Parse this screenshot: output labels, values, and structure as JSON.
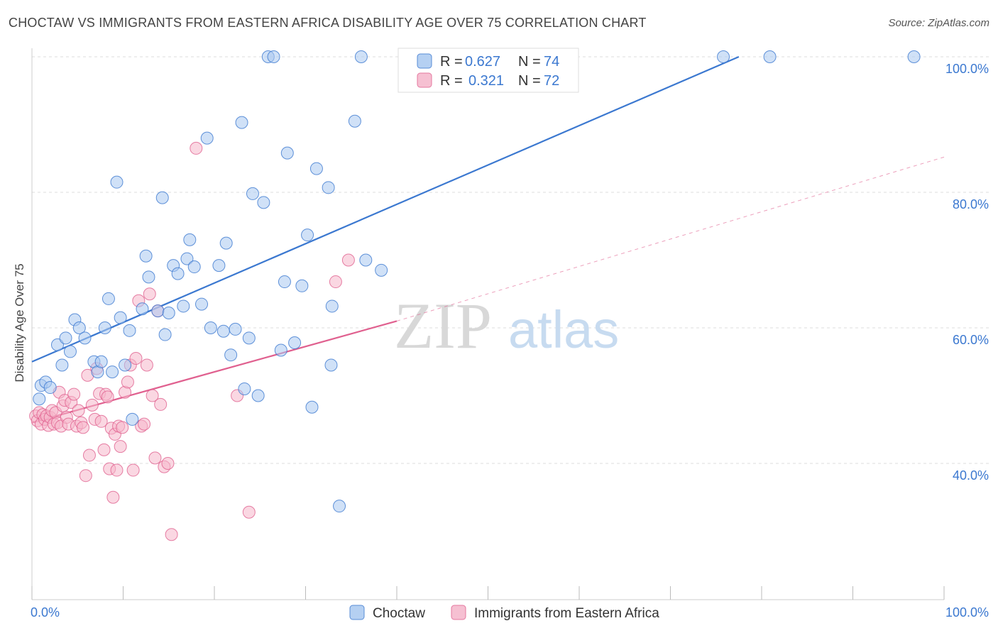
{
  "title": "CHOCTAW VS IMMIGRANTS FROM EASTERN AFRICA DISABILITY AGE OVER 75 CORRELATION CHART",
  "source": "Source: ZipAtlas.com",
  "watermark": {
    "part1": "ZIP",
    "part2": "atlas"
  },
  "colors": {
    "blue": "#3b78d0",
    "blue_fill": "#a9c8f0",
    "pink": "#e0608f",
    "pink_fill": "#f5b6cb",
    "grid": "#dddddd"
  },
  "chart_data": {
    "type": "scatter",
    "title": "CHOCTAW VS IMMIGRANTS FROM EASTERN AFRICA DISABILITY AGE OVER 75 CORRELATION CHART",
    "xlabel": "",
    "ylabel": "Disability Age Over 75",
    "xlim": [
      0,
      100
    ],
    "ylim": [
      20,
      102
    ],
    "x_tick_labels": [
      "0.0%",
      "100.0%"
    ],
    "y_ticks": [
      40,
      60,
      80,
      100
    ],
    "y_tick_labels": [
      "40.0%",
      "60.0%",
      "80.0%",
      "100.0%"
    ],
    "legend": [
      {
        "r_label": "R =",
        "r_value": "0.627",
        "n_label": "N =",
        "n_value": "74"
      },
      {
        "r_label": "R =",
        "r_value": "0.321",
        "n_label": "N =",
        "n_value": "72"
      }
    ],
    "series": [
      {
        "name": "Choctaw",
        "trend": {
          "x0": 0,
          "y0": 55.0,
          "x1": 77.5,
          "y1": 100.0,
          "dashed_to": null
        },
        "points": [
          [
            0.8,
            49.5
          ],
          [
            1.0,
            51.5
          ],
          [
            1.5,
            52.0
          ],
          [
            2.0,
            51.2
          ],
          [
            2.8,
            57.5
          ],
          [
            3.3,
            54.5
          ],
          [
            3.7,
            58.5
          ],
          [
            4.2,
            56.5
          ],
          [
            4.7,
            61.2
          ],
          [
            5.2,
            60.0
          ],
          [
            5.8,
            58.5
          ],
          [
            6.8,
            55.0
          ],
          [
            7.2,
            53.5
          ],
          [
            7.6,
            55.0
          ],
          [
            8.0,
            60.0
          ],
          [
            8.4,
            64.3
          ],
          [
            8.8,
            53.5
          ],
          [
            9.3,
            81.5
          ],
          [
            9.7,
            61.5
          ],
          [
            10.2,
            54.5
          ],
          [
            10.7,
            59.6
          ],
          [
            11.0,
            46.5
          ],
          [
            12.1,
            62.8
          ],
          [
            12.5,
            70.6
          ],
          [
            12.8,
            67.5
          ],
          [
            13.8,
            62.5
          ],
          [
            14.3,
            79.2
          ],
          [
            14.6,
            59.0
          ],
          [
            15.0,
            62.2
          ],
          [
            15.5,
            69.2
          ],
          [
            16.0,
            68.0
          ],
          [
            16.6,
            63.2
          ],
          [
            17.0,
            70.2
          ],
          [
            17.3,
            73.0
          ],
          [
            17.8,
            69.0
          ],
          [
            18.6,
            63.5
          ],
          [
            19.2,
            88.0
          ],
          [
            19.6,
            60.0
          ],
          [
            20.5,
            69.2
          ],
          [
            21.0,
            59.5
          ],
          [
            21.3,
            72.5
          ],
          [
            21.8,
            56.0
          ],
          [
            22.3,
            59.8
          ],
          [
            23.0,
            90.3
          ],
          [
            23.3,
            51.0
          ],
          [
            23.8,
            58.5
          ],
          [
            24.2,
            79.8
          ],
          [
            24.8,
            50.0
          ],
          [
            25.4,
            78.5
          ],
          [
            25.9,
            100.0
          ],
          [
            26.5,
            100.0
          ],
          [
            27.3,
            56.7
          ],
          [
            27.7,
            66.8
          ],
          [
            28.0,
            85.8
          ],
          [
            28.8,
            57.8
          ],
          [
            29.6,
            66.2
          ],
          [
            30.2,
            73.7
          ],
          [
            30.7,
            48.3
          ],
          [
            31.2,
            83.5
          ],
          [
            32.5,
            80.7
          ],
          [
            32.8,
            54.5
          ],
          [
            32.9,
            63.2
          ],
          [
            33.7,
            33.7
          ],
          [
            35.4,
            90.5
          ],
          [
            36.1,
            100.0
          ],
          [
            36.6,
            70.0
          ],
          [
            38.3,
            68.5
          ],
          [
            75.8,
            100.0
          ],
          [
            80.9,
            100.0
          ],
          [
            96.7,
            100.0
          ]
        ]
      },
      {
        "name": "Immigrants from Eastern Africa",
        "trend": {
          "x0": 0,
          "y0": 46.0,
          "x1": 40.0,
          "y1": 61.0,
          "dashed_to": {
            "x": 100,
            "y": 85.2
          }
        },
        "points": [
          [
            0.4,
            47.0
          ],
          [
            0.6,
            46.3
          ],
          [
            0.8,
            47.5
          ],
          [
            1.0,
            45.8
          ],
          [
            1.2,
            47.2
          ],
          [
            1.4,
            46.5
          ],
          [
            1.6,
            47.0
          ],
          [
            1.8,
            45.6
          ],
          [
            2.0,
            46.8
          ],
          [
            2.2,
            47.8
          ],
          [
            2.4,
            45.8
          ],
          [
            2.6,
            47.5
          ],
          [
            2.8,
            46.0
          ],
          [
            3.0,
            50.5
          ],
          [
            3.2,
            45.5
          ],
          [
            3.4,
            48.5
          ],
          [
            3.6,
            49.3
          ],
          [
            3.8,
            46.8
          ],
          [
            4.0,
            45.8
          ],
          [
            4.3,
            49.0
          ],
          [
            4.6,
            50.2
          ],
          [
            4.9,
            45.5
          ],
          [
            5.1,
            47.8
          ],
          [
            5.4,
            46.0
          ],
          [
            5.6,
            45.3
          ],
          [
            5.9,
            38.2
          ],
          [
            6.1,
            53.0
          ],
          [
            6.3,
            41.2
          ],
          [
            6.6,
            48.6
          ],
          [
            6.9,
            46.5
          ],
          [
            7.1,
            54.0
          ],
          [
            7.4,
            50.3
          ],
          [
            7.6,
            46.2
          ],
          [
            7.9,
            42.0
          ],
          [
            8.1,
            50.2
          ],
          [
            8.3,
            49.8
          ],
          [
            8.5,
            39.2
          ],
          [
            8.7,
            45.2
          ],
          [
            8.9,
            35.0
          ],
          [
            9.1,
            44.3
          ],
          [
            9.3,
            39.0
          ],
          [
            9.5,
            45.5
          ],
          [
            9.7,
            42.5
          ],
          [
            9.9,
            45.3
          ],
          [
            10.2,
            50.5
          ],
          [
            10.5,
            52.0
          ],
          [
            10.8,
            54.5
          ],
          [
            11.1,
            39.0
          ],
          [
            11.4,
            55.5
          ],
          [
            11.7,
            64.0
          ],
          [
            12.0,
            45.5
          ],
          [
            12.3,
            45.8
          ],
          [
            12.6,
            54.5
          ],
          [
            12.9,
            65.0
          ],
          [
            13.2,
            50.0
          ],
          [
            13.5,
            40.8
          ],
          [
            13.8,
            62.5
          ],
          [
            14.1,
            48.7
          ],
          [
            14.5,
            39.5
          ],
          [
            14.9,
            40.0
          ],
          [
            15.3,
            29.5
          ],
          [
            18.0,
            86.5
          ],
          [
            22.5,
            50.0
          ],
          [
            23.8,
            32.8
          ],
          [
            33.3,
            66.8
          ],
          [
            34.7,
            70.0
          ]
        ]
      }
    ]
  },
  "bottom_legend": [
    {
      "label": "Choctaw"
    },
    {
      "label": "Immigrants from Eastern Africa"
    }
  ]
}
